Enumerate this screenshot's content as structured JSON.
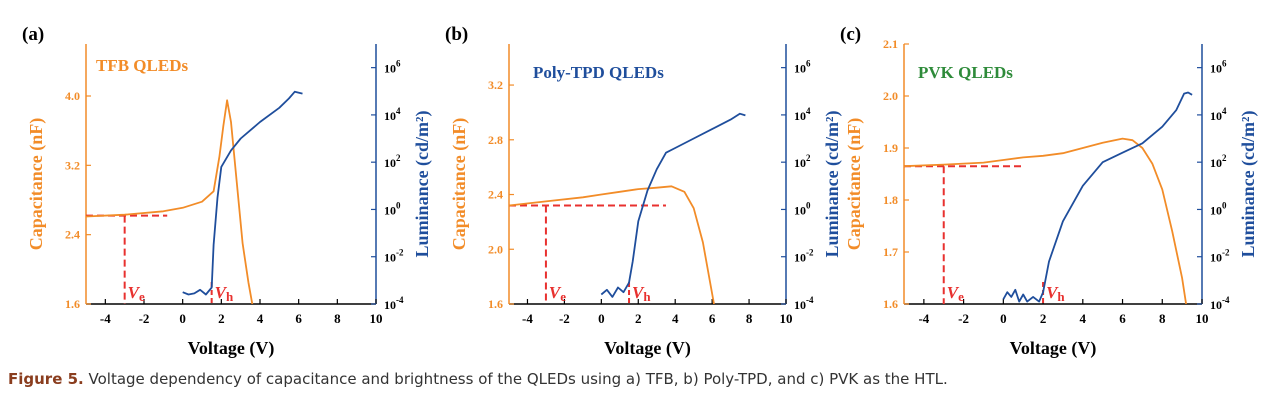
{
  "colors": {
    "capacitance": "#F28C28",
    "luminance": "#1F4E9C",
    "marker": "#E8312F",
    "axis_left": "#F28C28",
    "axis_right": "#1F4E9C",
    "title_a": "#F28C28",
    "title_b": "#1F4E9C",
    "title_c": "#2E8B3A"
  },
  "caption": {
    "label": "Figure 5.",
    "text": "Voltage dependency of capacitance and brightness of the QLEDs using a) TFB, b) Poly-TPD, and c) PVK as the HTL."
  },
  "chart_data": [
    {
      "type": "line",
      "panel": "(a)",
      "title": "TFB QLEDs",
      "xlabel": "Voltage (V)",
      "ylabel_left": "Capacitance (nF)",
      "ylabel_right": "Luminance (cd/m²)",
      "xlim": [
        -5,
        10
      ],
      "xticks": [
        -4,
        -2,
        0,
        2,
        4,
        6,
        8,
        10
      ],
      "ylim_left": [
        1.6,
        4.6
      ],
      "yticks_left": [
        1.6,
        2.4,
        3.2,
        4.0
      ],
      "ylim_right_log10": [
        -4,
        7
      ],
      "yticks_right_exp": [
        -4,
        -2,
        0,
        2,
        4,
        6
      ],
      "markers": {
        "Ve": -3.0,
        "Vh": 1.5,
        "ref_cap": 2.62,
        "ref_x_end": -0.8
      },
      "series": [
        {
          "axis": "left",
          "points": [
            [
              -5,
              2.61
            ],
            [
              -3,
              2.63
            ],
            [
              -1,
              2.67
            ],
            [
              0,
              2.71
            ],
            [
              1,
              2.78
            ],
            [
              1.6,
              2.9
            ],
            [
              1.9,
              3.3
            ],
            [
              2.1,
              3.65
            ],
            [
              2.3,
              3.95
            ],
            [
              2.5,
              3.7
            ],
            [
              2.8,
              3.0
            ],
            [
              3.1,
              2.3
            ],
            [
              3.4,
              1.85
            ],
            [
              3.6,
              1.6
            ]
          ]
        },
        {
          "axis": "right",
          "points": [
            [
              0,
              -3.5
            ],
            [
              0.3,
              -3.6
            ],
            [
              0.6,
              -3.55
            ],
            [
              0.9,
              -3.4
            ],
            [
              1.2,
              -3.6
            ],
            [
              1.5,
              -3.3
            ],
            [
              1.6,
              -1.5
            ],
            [
              1.8,
              0.5
            ],
            [
              2.0,
              1.8
            ],
            [
              2.5,
              2.5
            ],
            [
              3.0,
              3.0
            ],
            [
              4.0,
              3.7
            ],
            [
              5.0,
              4.3
            ],
            [
              5.5,
              4.7
            ],
            [
              5.8,
              4.98
            ],
            [
              6.2,
              4.9
            ]
          ]
        }
      ]
    },
    {
      "type": "line",
      "panel": "(b)",
      "title": "Poly-TPD QLEDs",
      "xlabel": "Voltage (V)",
      "ylabel_left": "Capacitance (nF)",
      "ylabel_right": "Luminance (cd/m²)",
      "xlim": [
        -5,
        10
      ],
      "xticks": [
        -4,
        -2,
        0,
        2,
        4,
        6,
        8,
        10
      ],
      "ylim_left": [
        1.6,
        3.5
      ],
      "yticks_left": [
        1.6,
        2.0,
        2.4,
        2.8,
        3.2
      ],
      "ylim_right_log10": [
        -4,
        7
      ],
      "yticks_right_exp": [
        -4,
        -2,
        0,
        2,
        4,
        6
      ],
      "markers": {
        "Ve": -3.0,
        "Vh": 1.5,
        "ref_cap": 2.32,
        "ref_x_end": 3.5
      },
      "series": [
        {
          "axis": "left",
          "points": [
            [
              -5,
              2.32
            ],
            [
              -3,
              2.35
            ],
            [
              -1,
              2.38
            ],
            [
              0,
              2.4
            ],
            [
              1,
              2.42
            ],
            [
              2,
              2.44
            ],
            [
              3,
              2.45
            ],
            [
              3.8,
              2.46
            ],
            [
              4.5,
              2.42
            ],
            [
              5.0,
              2.3
            ],
            [
              5.5,
              2.05
            ],
            [
              5.9,
              1.75
            ],
            [
              6.1,
              1.6
            ]
          ]
        },
        {
          "axis": "right",
          "points": [
            [
              0,
              -3.6
            ],
            [
              0.3,
              -3.4
            ],
            [
              0.6,
              -3.7
            ],
            [
              0.9,
              -3.3
            ],
            [
              1.2,
              -3.5
            ],
            [
              1.5,
              -3.1
            ],
            [
              1.7,
              -2.2
            ],
            [
              2.0,
              -0.5
            ],
            [
              2.5,
              0.8
            ],
            [
              3.0,
              1.7
            ],
            [
              3.5,
              2.4
            ],
            [
              4.0,
              2.6
            ],
            [
              5.0,
              3.0
            ],
            [
              6.0,
              3.4
            ],
            [
              7.0,
              3.8
            ],
            [
              7.5,
              4.05
            ],
            [
              7.8,
              3.98
            ]
          ]
        }
      ]
    },
    {
      "type": "line",
      "panel": "(c)",
      "title": "PVK QLEDs",
      "xlabel": "Voltage (V)",
      "ylabel_left": "Capacitance (nF)",
      "ylabel_right": "Luminance (cd/m²)",
      "xlim": [
        -5,
        10
      ],
      "xticks": [
        -4,
        -2,
        0,
        2,
        4,
        6,
        8,
        10
      ],
      "ylim_left": [
        1.6,
        2.1
      ],
      "yticks_left": [
        1.6,
        1.7,
        1.8,
        1.9,
        2.0,
        2.1
      ],
      "ylim_right_log10": [
        -4,
        7
      ],
      "yticks_right_exp": [
        -4,
        -2,
        0,
        2,
        4,
        6
      ],
      "markers": {
        "Ve": -3.0,
        "Vh": 2.0,
        "ref_cap": 1.865,
        "ref_x_end": 1.0
      },
      "series": [
        {
          "axis": "left",
          "points": [
            [
              -5,
              1.865
            ],
            [
              -3,
              1.868
            ],
            [
              -1,
              1.872
            ],
            [
              0,
              1.877
            ],
            [
              1,
              1.882
            ],
            [
              2,
              1.885
            ],
            [
              3,
              1.89
            ],
            [
              4,
              1.9
            ],
            [
              5,
              1.91
            ],
            [
              6,
              1.918
            ],
            [
              6.5,
              1.915
            ],
            [
              7,
              1.9
            ],
            [
              7.5,
              1.87
            ],
            [
              8,
              1.82
            ],
            [
              8.5,
              1.74
            ],
            [
              9,
              1.65
            ],
            [
              9.2,
              1.6
            ]
          ]
        },
        {
          "axis": "right",
          "points": [
            [
              0,
              -3.8
            ],
            [
              0.2,
              -3.5
            ],
            [
              0.4,
              -3.7
            ],
            [
              0.6,
              -3.4
            ],
            [
              0.8,
              -3.9
            ],
            [
              1.0,
              -3.6
            ],
            [
              1.2,
              -3.9
            ],
            [
              1.5,
              -3.7
            ],
            [
              1.8,
              -3.9
            ],
            [
              2.0,
              -3.5
            ],
            [
              2.3,
              -2.2
            ],
            [
              3.0,
              -0.5
            ],
            [
              4.0,
              1.0
            ],
            [
              5.0,
              2.0
            ],
            [
              6.0,
              2.4
            ],
            [
              7.0,
              2.8
            ],
            [
              8.0,
              3.5
            ],
            [
              8.7,
              4.2
            ],
            [
              9.1,
              4.9
            ],
            [
              9.3,
              4.95
            ],
            [
              9.5,
              4.85
            ]
          ]
        }
      ]
    }
  ]
}
